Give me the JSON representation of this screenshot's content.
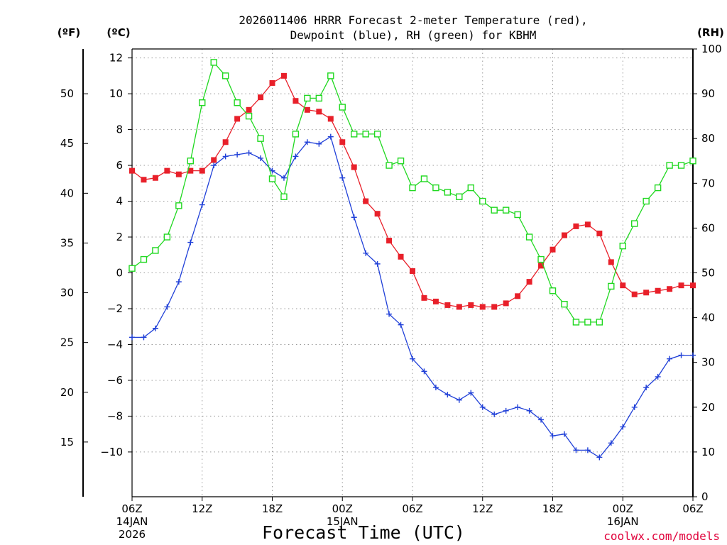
{
  "chart_data": {
    "type": "line",
    "title_lines": [
      "2026011406 HRRR Forecast 2-meter Temperature (red),",
      "Dewpoint (blue), RH (green) for KBHM"
    ],
    "xlabel": "Forecast Time (UTC)",
    "credit": "coolwx.com/models",
    "units": {
      "fahrenheit": "(ºF)",
      "celsius": "(ºC)",
      "rh": "(RH)"
    },
    "x_range_hours": [
      0,
      48
    ],
    "ylim_c": [
      -12.5,
      12.5
    ],
    "ylim_rh": [
      0,
      100
    ],
    "x_ticks": [
      {
        "hour": 0,
        "labels": [
          "06Z",
          "14JAN",
          "2026"
        ]
      },
      {
        "hour": 6,
        "labels": [
          "12Z"
        ]
      },
      {
        "hour": 12,
        "labels": [
          "18Z"
        ]
      },
      {
        "hour": 18,
        "labels": [
          "00Z",
          "15JAN"
        ]
      },
      {
        "hour": 24,
        "labels": [
          "06Z"
        ]
      },
      {
        "hour": 30,
        "labels": [
          "12Z"
        ]
      },
      {
        "hour": 36,
        "labels": [
          "18Z"
        ]
      },
      {
        "hour": 42,
        "labels": [
          "00Z",
          "16JAN"
        ]
      },
      {
        "hour": 48,
        "labels": [
          "06Z"
        ]
      }
    ],
    "y_ticks_c": [
      12,
      10,
      8,
      6,
      4,
      2,
      0,
      -2,
      -4,
      -6,
      -8,
      -10
    ],
    "y_ticks_f": [
      50,
      45,
      40,
      35,
      30,
      25,
      20,
      15
    ],
    "y_ticks_rh": [
      100,
      90,
      80,
      70,
      60,
      50,
      40,
      30,
      20,
      10,
      0
    ],
    "series": [
      {
        "name": "2-meter Temperature",
        "unit": "C",
        "axis": "left",
        "color": "#e8202a",
        "marker": "filled-square",
        "values": [
          5.7,
          5.2,
          5.3,
          5.7,
          5.5,
          5.7,
          5.7,
          6.3,
          7.3,
          8.6,
          9.1,
          9.8,
          10.6,
          11.0,
          9.6,
          9.1,
          9.0,
          8.6,
          7.3,
          5.9,
          4.0,
          3.3,
          1.8,
          0.9,
          0.1,
          -1.4,
          -1.6,
          -1.8,
          -1.9,
          -1.8,
          -1.9,
          -1.9,
          -1.7,
          -1.3,
          -0.5,
          0.4,
          1.3,
          2.1,
          2.6,
          2.7,
          2.2,
          0.6,
          -0.7,
          -1.2,
          -1.1,
          -1.0,
          -0.9,
          -0.7,
          -0.7
        ]
      },
      {
        "name": "Dewpoint",
        "unit": "C",
        "axis": "left",
        "color": "#2040d8",
        "marker": "plus",
        "values": [
          -3.6,
          -3.6,
          -3.1,
          -1.9,
          -0.5,
          1.7,
          3.8,
          6.0,
          6.5,
          6.6,
          6.7,
          6.4,
          5.7,
          5.3,
          6.5,
          7.3,
          7.2,
          7.6,
          5.3,
          3.1,
          1.1,
          0.5,
          -2.3,
          -2.9,
          -4.8,
          -5.5,
          -6.4,
          -6.8,
          -7.1,
          -6.7,
          -7.5,
          -7.9,
          -7.7,
          -7.5,
          -7.7,
          -8.2,
          -9.1,
          -9.0,
          -9.9,
          -9.9,
          -10.3,
          -9.5,
          -8.6,
          -7.5,
          -6.4,
          -5.8,
          -4.8,
          -4.6,
          -4.6
        ]
      },
      {
        "name": "RH",
        "unit": "%",
        "axis": "right",
        "color": "#20d820",
        "marker": "open-square",
        "values": [
          51,
          53,
          55,
          58,
          65,
          75,
          88,
          97,
          94,
          88,
          85,
          80,
          71,
          67,
          81,
          89,
          89,
          94,
          87,
          81,
          81,
          81,
          74,
          75,
          69,
          71,
          69,
          68,
          67,
          69,
          66,
          64,
          64,
          63,
          58,
          53,
          46,
          43,
          39,
          39,
          39,
          47,
          56,
          61,
          66,
          69,
          74,
          74,
          75
        ]
      }
    ]
  }
}
